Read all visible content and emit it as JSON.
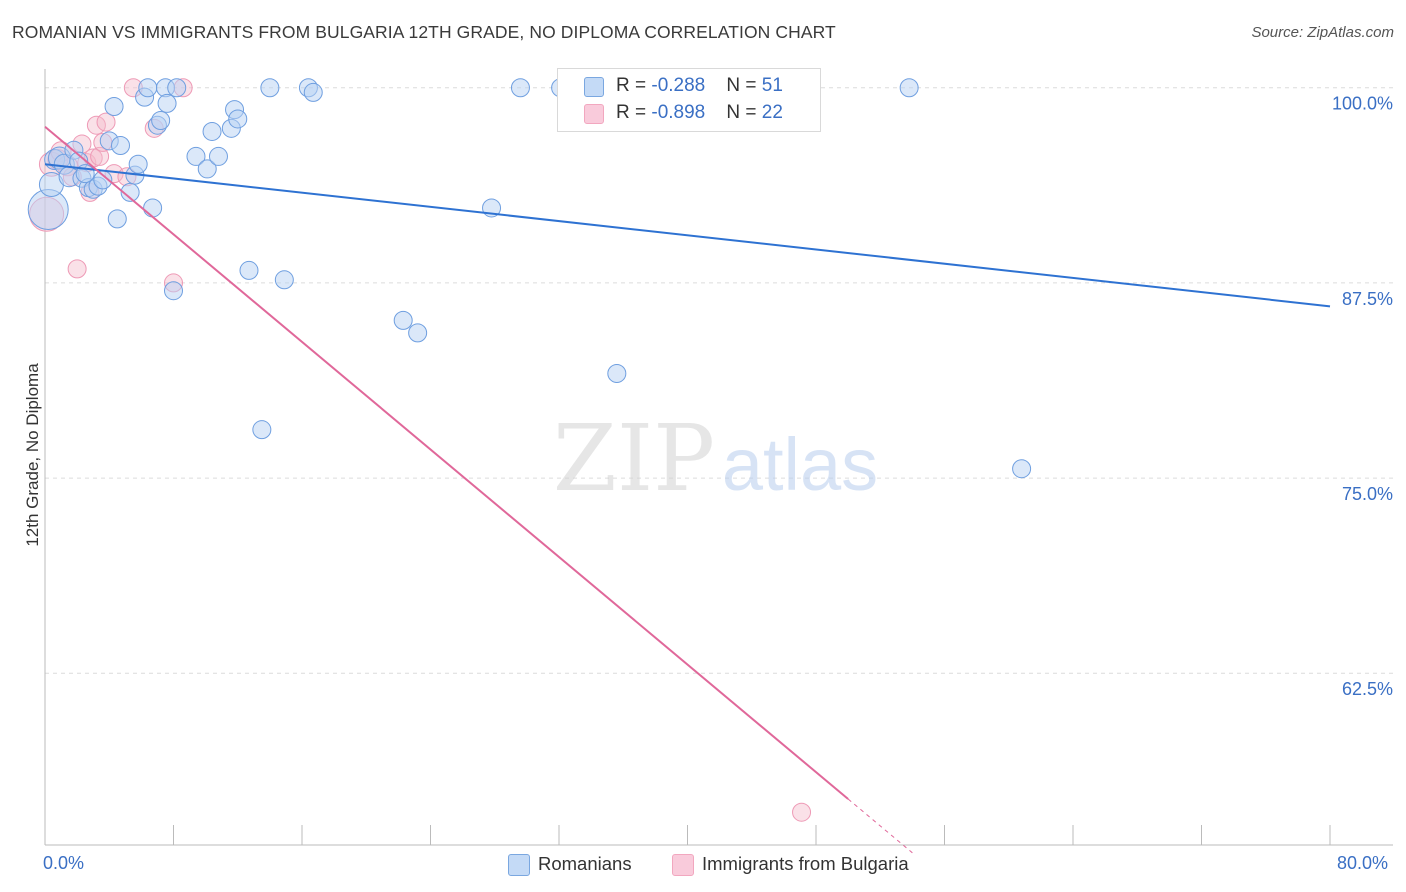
{
  "header": {
    "title": "ROMANIAN VS IMMIGRANTS FROM BULGARIA 12TH GRADE, NO DIPLOMA CORRELATION CHART",
    "source": "Source: ZipAtlas.com"
  },
  "watermark": {
    "zip": "ZIP",
    "atlas": "atlas"
  },
  "legend": {
    "items": [
      {
        "r_label": "R = ",
        "r_value": "-0.288",
        "n_label": "N = ",
        "n_value": "51",
        "color": "#a8c8f0"
      },
      {
        "r_label": "R = ",
        "r_value": "-0.898",
        "n_label": "N = ",
        "n_value": "22",
        "color": "#f5b8cb"
      }
    ]
  },
  "bottom_legend": {
    "romanians": "Romanians",
    "bulgaria": "Immigrants from Bulgaria"
  },
  "chart_data": {
    "type": "scatter",
    "title": "ROMANIAN VS IMMIGRANTS FROM BULGARIA 12TH GRADE, NO DIPLOMA CORRELATION CHART",
    "xlabel": "",
    "ylabel": "12th Grade, No Diploma",
    "xlim": [
      0,
      80
    ],
    "ylim": [
      51.5,
      101.2
    ],
    "x_tick_labels": [
      "0.0%",
      "80.0%"
    ],
    "y_ticks": [
      100.0,
      87.5,
      75.0,
      62.5
    ],
    "y_tick_labels": [
      "100.0%",
      "87.5%",
      "75.0%",
      "62.5%"
    ],
    "grid": true,
    "legend_position": "top-center",
    "series": [
      {
        "name": "Romanians",
        "color": "#7aa7e0",
        "line_color": "#2e72d2",
        "trend": {
          "x": [
            0,
            80
          ],
          "y": [
            95.1,
            86.0
          ]
        },
        "points": [
          {
            "x": 0.2,
            "y": 92.2,
            "s": 20
          },
          {
            "x": 0.4,
            "y": 93.8,
            "s": 12
          },
          {
            "x": 0.6,
            "y": 95.4,
            "s": 10
          },
          {
            "x": 0.9,
            "y": 95.5,
            "s": 11
          },
          {
            "x": 1.2,
            "y": 95.1,
            "s": 10
          },
          {
            "x": 1.5,
            "y": 94.3,
            "s": 10
          },
          {
            "x": 1.8,
            "y": 96.0,
            "s": 9
          },
          {
            "x": 2.1,
            "y": 95.3,
            "s": 9
          },
          {
            "x": 2.3,
            "y": 94.2,
            "s": 9
          },
          {
            "x": 2.7,
            "y": 93.6,
            "s": 9
          },
          {
            "x": 3.0,
            "y": 93.5,
            "s": 9
          },
          {
            "x": 3.3,
            "y": 93.7,
            "s": 9
          },
          {
            "x": 3.6,
            "y": 94.1,
            "s": 9
          },
          {
            "x": 4.0,
            "y": 96.6,
            "s": 9
          },
          {
            "x": 4.3,
            "y": 98.8,
            "s": 9
          },
          {
            "x": 4.5,
            "y": 91.6,
            "s": 9
          },
          {
            "x": 4.7,
            "y": 96.3,
            "s": 9
          },
          {
            "x": 5.6,
            "y": 94.4,
            "s": 9
          },
          {
            "x": 5.8,
            "y": 95.1,
            "s": 9
          },
          {
            "x": 6.2,
            "y": 99.4,
            "s": 9
          },
          {
            "x": 6.4,
            "y": 100.0,
            "s": 9
          },
          {
            "x": 6.7,
            "y": 92.3,
            "s": 9
          },
          {
            "x": 7.0,
            "y": 97.6,
            "s": 9
          },
          {
            "x": 7.2,
            "y": 97.9,
            "s": 9
          },
          {
            "x": 7.5,
            "y": 100.0,
            "s": 9
          },
          {
            "x": 7.6,
            "y": 99.0,
            "s": 9
          },
          {
            "x": 8.0,
            "y": 87.0,
            "s": 9
          },
          {
            "x": 8.2,
            "y": 100.0,
            "s": 9
          },
          {
            "x": 9.4,
            "y": 95.6,
            "s": 9
          },
          {
            "x": 10.1,
            "y": 94.8,
            "s": 9
          },
          {
            "x": 10.4,
            "y": 97.2,
            "s": 9
          },
          {
            "x": 10.8,
            "y": 95.6,
            "s": 9
          },
          {
            "x": 11.6,
            "y": 97.4,
            "s": 9
          },
          {
            "x": 11.8,
            "y": 98.6,
            "s": 9
          },
          {
            "x": 12.0,
            "y": 98.0,
            "s": 9
          },
          {
            "x": 12.7,
            "y": 88.3,
            "s": 9
          },
          {
            "x": 13.5,
            "y": 78.1,
            "s": 9
          },
          {
            "x": 14.0,
            "y": 100.0,
            "s": 9
          },
          {
            "x": 14.9,
            "y": 87.7,
            "s": 9
          },
          {
            "x": 16.4,
            "y": 100.0,
            "s": 9
          },
          {
            "x": 16.7,
            "y": 99.7,
            "s": 9
          },
          {
            "x": 22.3,
            "y": 85.1,
            "s": 9
          },
          {
            "x": 23.2,
            "y": 84.3,
            "s": 9
          },
          {
            "x": 27.8,
            "y": 92.3,
            "s": 9
          },
          {
            "x": 29.6,
            "y": 100.0,
            "s": 9
          },
          {
            "x": 32.1,
            "y": 100.0,
            "s": 9
          },
          {
            "x": 35.6,
            "y": 81.7,
            "s": 9
          },
          {
            "x": 53.8,
            "y": 100.0,
            "s": 9
          },
          {
            "x": 60.8,
            "y": 75.6,
            "s": 9
          },
          {
            "x": 2.5,
            "y": 94.5,
            "s": 9
          },
          {
            "x": 5.3,
            "y": 93.3,
            "s": 9
          }
        ]
      },
      {
        "name": "Immigrants from Bulgaria",
        "color": "#f2a7bf",
        "line_color": "#e0689a",
        "trend": {
          "x": [
            0,
            54
          ],
          "y": [
            97.5,
            51.0
          ]
        },
        "trend_dash_from_x": 50,
        "points": [
          {
            "x": 0.1,
            "y": 91.9,
            "s": 17
          },
          {
            "x": 0.4,
            "y": 95.1,
            "s": 12
          },
          {
            "x": 0.8,
            "y": 95.4,
            "s": 10
          },
          {
            "x": 1.0,
            "y": 95.9,
            "s": 10
          },
          {
            "x": 1.4,
            "y": 95.0,
            "s": 10
          },
          {
            "x": 1.7,
            "y": 94.3,
            "s": 9
          },
          {
            "x": 2.0,
            "y": 88.4,
            "s": 9
          },
          {
            "x": 2.3,
            "y": 96.4,
            "s": 9
          },
          {
            "x": 2.6,
            "y": 95.2,
            "s": 9
          },
          {
            "x": 2.8,
            "y": 93.3,
            "s": 9
          },
          {
            "x": 3.0,
            "y": 95.5,
            "s": 9
          },
          {
            "x": 3.2,
            "y": 97.6,
            "s": 9
          },
          {
            "x": 3.4,
            "y": 95.6,
            "s": 9
          },
          {
            "x": 3.6,
            "y": 96.5,
            "s": 9
          },
          {
            "x": 3.8,
            "y": 97.8,
            "s": 9
          },
          {
            "x": 4.3,
            "y": 94.5,
            "s": 9
          },
          {
            "x": 5.1,
            "y": 94.3,
            "s": 9
          },
          {
            "x": 5.5,
            "y": 100.0,
            "s": 9
          },
          {
            "x": 6.8,
            "y": 97.4,
            "s": 9
          },
          {
            "x": 8.0,
            "y": 87.5,
            "s": 9
          },
          {
            "x": 8.6,
            "y": 100.0,
            "s": 9
          },
          {
            "x": 47.1,
            "y": 53.6,
            "s": 9
          }
        ]
      }
    ]
  }
}
